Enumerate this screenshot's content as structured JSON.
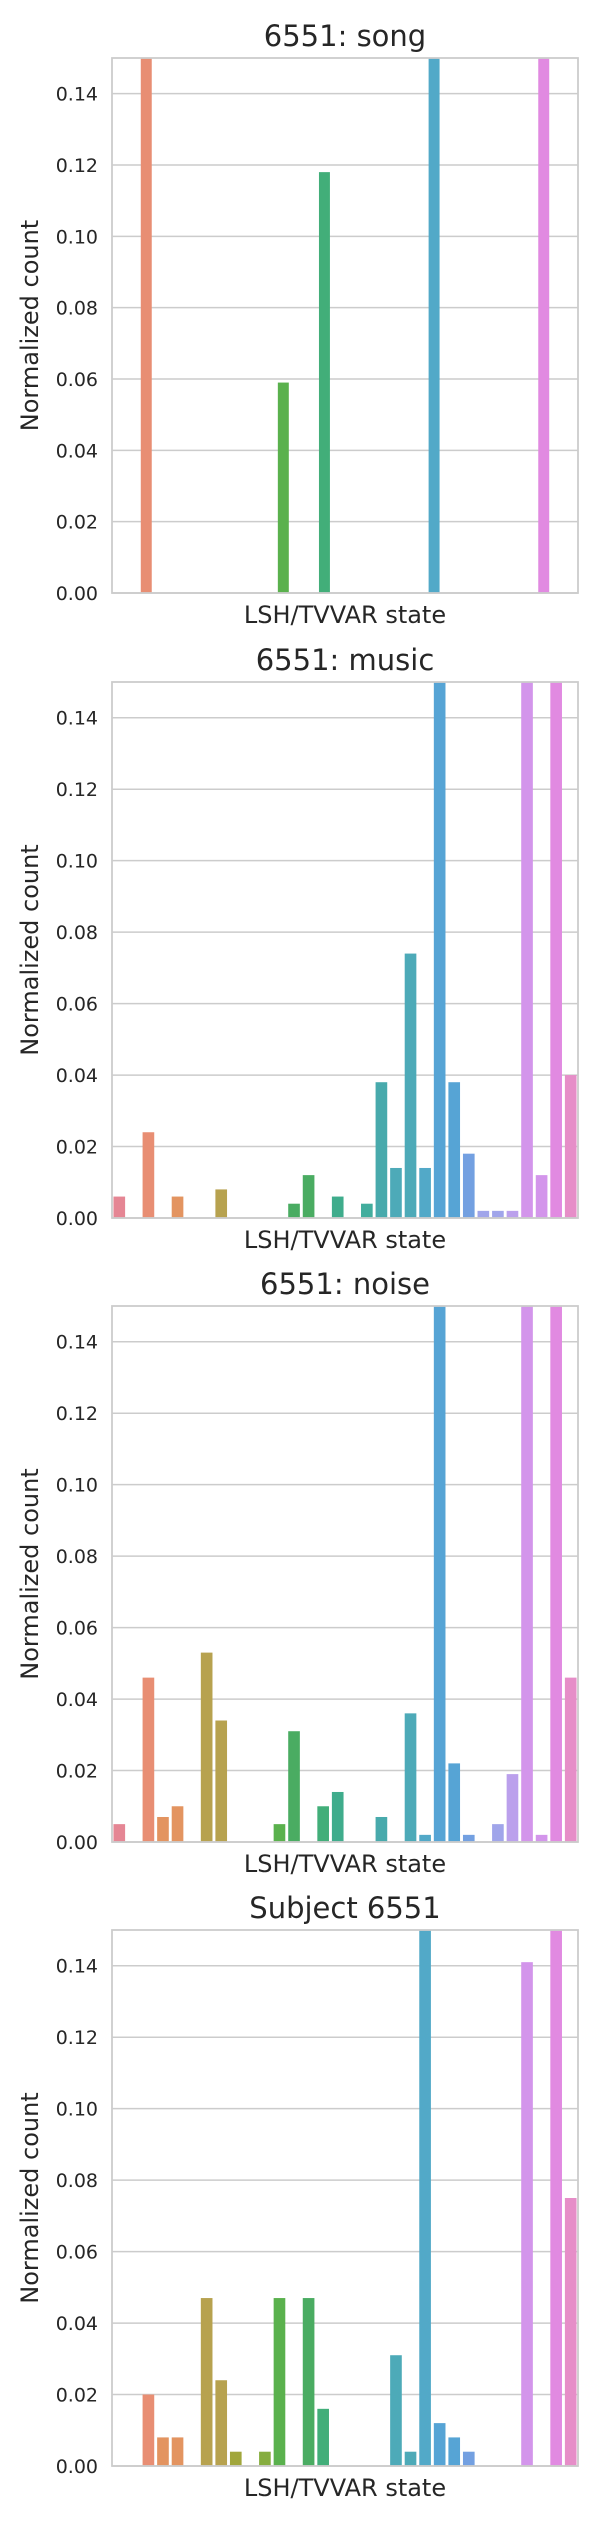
{
  "chart_data": [
    {
      "type": "bar",
      "title": "6551: song",
      "xlabel": "LSH/TVVAR state",
      "ylabel": "Normalized count",
      "ylim": [
        0,
        0.15
      ],
      "yticks": [
        "0.00",
        "0.02",
        "0.04",
        "0.06",
        "0.08",
        "0.10",
        "0.12",
        "0.14"
      ],
      "grid": true,
      "values": [
        0,
        0,
        0.15,
        0,
        0,
        0,
        0,
        0,
        0,
        0,
        0,
        0,
        0.059,
        0,
        0,
        0.118,
        0,
        0,
        0,
        0,
        0,
        0,
        0,
        0.15,
        0,
        0,
        0,
        0,
        0,
        0,
        0,
        0.15,
        0,
        0
      ]
    },
    {
      "type": "bar",
      "title": "6551: music",
      "xlabel": "LSH/TVVAR state",
      "ylabel": "Normalized count",
      "ylim": [
        0,
        0.15
      ],
      "yticks": [
        "0.00",
        "0.02",
        "0.04",
        "0.06",
        "0.08",
        "0.10",
        "0.12",
        "0.14"
      ],
      "grid": true,
      "values": [
        0.006,
        0,
        0.024,
        0,
        0.006,
        0,
        0,
        0.008,
        0,
        0,
        0,
        0,
        0.004,
        0.012,
        0,
        0.006,
        0,
        0.004,
        0.038,
        0.014,
        0.074,
        0.014,
        0.15,
        0.038,
        0.018,
        0.002,
        0.002,
        0.002,
        0.15,
        0.012,
        0.15,
        0.04
      ]
    },
    {
      "type": "bar",
      "title": "6551: noise",
      "xlabel": "LSH/TVVAR state",
      "ylabel": "Normalized count",
      "ylim": [
        0,
        0.15
      ],
      "yticks": [
        "0.00",
        "0.02",
        "0.04",
        "0.06",
        "0.08",
        "0.10",
        "0.12",
        "0.14"
      ],
      "grid": true,
      "values": [
        0.005,
        0,
        0.046,
        0.007,
        0.01,
        0,
        0.053,
        0.034,
        0,
        0,
        0,
        0.005,
        0.031,
        0,
        0.01,
        0.014,
        0,
        0,
        0.007,
        0,
        0.036,
        0.002,
        0.15,
        0.022,
        0.002,
        0,
        0.005,
        0.019,
        0.15,
        0.002,
        0.15,
        0.046
      ]
    },
    {
      "type": "bar",
      "title": "Subject 6551",
      "xlabel": "LSH/TVVAR state",
      "ylabel": "Normalized count",
      "ylim": [
        0,
        0.15
      ],
      "yticks": [
        "0.00",
        "0.02",
        "0.04",
        "0.06",
        "0.08",
        "0.10",
        "0.12",
        "0.14"
      ],
      "grid": true,
      "values": [
        0,
        0,
        0.02,
        0.008,
        0.008,
        0,
        0.047,
        0.024,
        0.004,
        0,
        0.004,
        0.047,
        0,
        0.047,
        0.016,
        0,
        0,
        0,
        0,
        0.031,
        0.004,
        0.15,
        0.012,
        0.008,
        0.004,
        0,
        0,
        0,
        0.141,
        0,
        0.15,
        0.075
      ]
    }
  ]
}
